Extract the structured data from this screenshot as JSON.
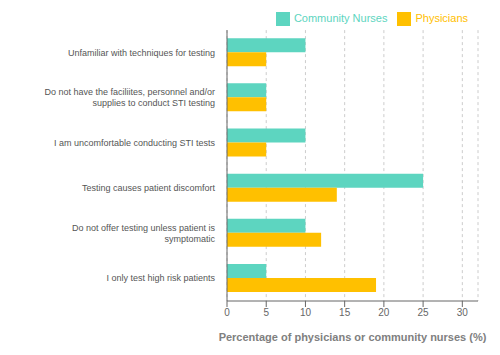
{
  "chart_data": {
    "type": "bar",
    "orientation": "horizontal",
    "categories": [
      "I only test high risk patients",
      "Do not offer testing unless patient is\nsymptomatic",
      "Testing causes patient discomfort",
      "I am uncomfortable conducting STI tests",
      "Do not have the faciliites, personnel and/or\nsupplies to conduct STI testing",
      "Unfamiliar with techniques for testing"
    ],
    "series": [
      {
        "name": "Community Nurses",
        "color": "#5DD5C0",
        "values": [
          5,
          10,
          25,
          10,
          5,
          10
        ]
      },
      {
        "name": "Physicians",
        "color": "#FFC000",
        "values": [
          19,
          12,
          14,
          5,
          5,
          5
        ]
      }
    ],
    "xlabel": "Percentage of physicians or community nurses (%)",
    "xlim": [
      0,
      32
    ],
    "xticks": [
      0,
      5,
      10,
      15,
      20,
      25,
      30
    ],
    "grid": true,
    "legend": "upper right"
  }
}
